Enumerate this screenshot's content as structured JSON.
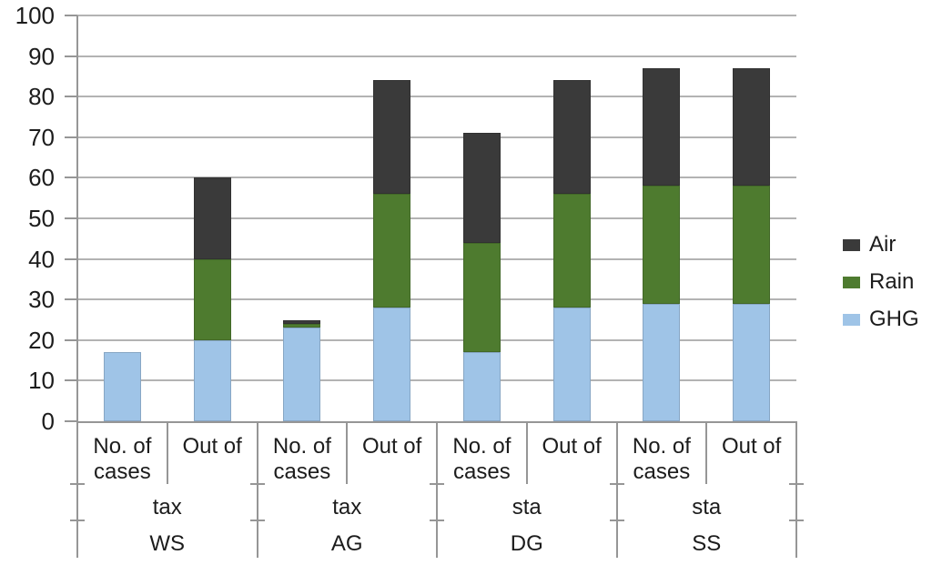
{
  "chart_data": {
    "type": "bar",
    "stacked": true,
    "title": "",
    "ylim": [
      0,
      100
    ],
    "ytick_step": 10,
    "yticks": [
      "0",
      "10",
      "20",
      "30",
      "40",
      "50",
      "60",
      "70",
      "80",
      "90",
      "100"
    ],
    "grid": true,
    "legend_position": "right",
    "categories": [
      "No. of cases",
      "Out of",
      "No. of cases",
      "Out of",
      "No. of cases",
      "Out of",
      "No. of cases",
      "Out of"
    ],
    "group_labels_mid": [
      "tax",
      "tax",
      "sta",
      "sta"
    ],
    "group_labels_bottom": [
      "WS",
      "AG",
      "DG",
      "SS"
    ],
    "series": [
      {
        "name": "GHG",
        "color": "#9fc4e7",
        "values": [
          17,
          20,
          23,
          28,
          17,
          28,
          29,
          29
        ]
      },
      {
        "name": "Rain",
        "color": "#4e7b2f",
        "values": [
          0,
          20,
          1,
          28,
          27,
          28,
          29,
          29
        ]
      },
      {
        "name": "Air",
        "color": "#3a3a3a",
        "values": [
          0,
          20,
          1,
          28,
          27,
          28,
          29,
          29
        ]
      }
    ],
    "legend": [
      {
        "label": "Air",
        "color": "#3a3a3a"
      },
      {
        "label": "Rain",
        "color": "#4e7b2f"
      },
      {
        "label": "GHG",
        "color": "#9fc4e7"
      }
    ]
  },
  "colors": {
    "background": "#ffffff",
    "gridline": "#b3b3b3",
    "axis": "#969696",
    "text": "#1c1c1c"
  }
}
